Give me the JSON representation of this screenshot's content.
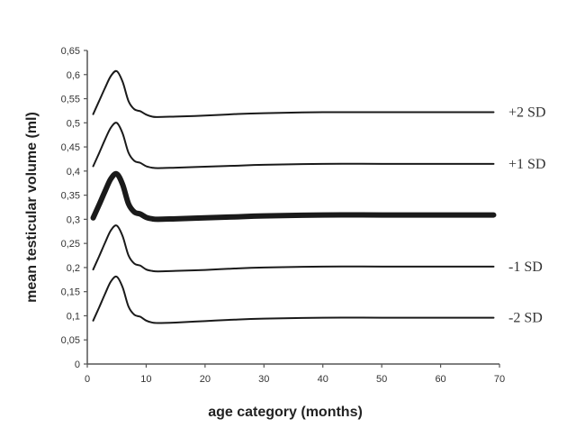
{
  "chart_data": {
    "type": "line",
    "title": "",
    "xlabel": "age category (months)",
    "ylabel": "mean testicular volume (ml)",
    "xlim": [
      0,
      70
    ],
    "ylim": [
      0,
      0.65
    ],
    "x_ticks": [
      0,
      10,
      20,
      30,
      40,
      50,
      60,
      70
    ],
    "x_tick_labels": [
      "0",
      "10",
      "20",
      "30",
      "40",
      "50",
      "60",
      "70"
    ],
    "y_ticks": [
      0,
      0.05,
      0.1,
      0.15,
      0.2,
      0.25,
      0.3,
      0.35,
      0.4,
      0.45,
      0.5,
      0.55,
      0.6,
      0.65
    ],
    "y_tick_labels": [
      "0",
      "0,05",
      "0,1",
      "0,15",
      "0,2",
      "0,25",
      "0,3",
      "0,35",
      "0,4",
      "0,45",
      "0,5",
      "0,55",
      "0,6",
      "0,65"
    ],
    "grid": false,
    "legend": "inline labels at right end of lines",
    "x": [
      1,
      2,
      3,
      4,
      5,
      6,
      7,
      8,
      9,
      10,
      11,
      12,
      15,
      20,
      25,
      30,
      40,
      50,
      60,
      69
    ],
    "series": [
      {
        "name": "+2 SD",
        "label": "+2 SD",
        "line_width": 2,
        "values": [
          0.518,
          0.545,
          0.572,
          0.597,
          0.607,
          0.585,
          0.545,
          0.528,
          0.524,
          0.517,
          0.513,
          0.512,
          0.513,
          0.515,
          0.518,
          0.52,
          0.522,
          0.522,
          0.522,
          0.522
        ]
      },
      {
        "name": "+1 SD",
        "label": "+1 SD",
        "line_width": 2,
        "values": [
          0.41,
          0.437,
          0.465,
          0.49,
          0.5,
          0.478,
          0.438,
          0.421,
          0.417,
          0.41,
          0.407,
          0.406,
          0.407,
          0.409,
          0.411,
          0.413,
          0.415,
          0.415,
          0.415,
          0.415
        ]
      },
      {
        "name": "Mean",
        "label": "",
        "line_width": 6,
        "values": [
          0.303,
          0.33,
          0.358,
          0.384,
          0.394,
          0.372,
          0.332,
          0.315,
          0.311,
          0.304,
          0.301,
          0.3,
          0.301,
          0.303,
          0.305,
          0.307,
          0.309,
          0.309,
          0.309,
          0.309
        ]
      },
      {
        "name": "-1 SD",
        "label": "-1 SD",
        "line_width": 2,
        "values": [
          0.196,
          0.223,
          0.251,
          0.277,
          0.287,
          0.265,
          0.225,
          0.208,
          0.204,
          0.196,
          0.193,
          0.192,
          0.193,
          0.195,
          0.198,
          0.2,
          0.202,
          0.202,
          0.202,
          0.202
        ]
      },
      {
        "name": "-2 SD",
        "label": "-2 SD",
        "line_width": 2,
        "values": [
          0.09,
          0.117,
          0.145,
          0.171,
          0.181,
          0.159,
          0.119,
          0.102,
          0.098,
          0.09,
          0.086,
          0.085,
          0.086,
          0.089,
          0.092,
          0.094,
          0.096,
          0.096,
          0.096,
          0.096
        ]
      }
    ]
  },
  "colors": {
    "axis": "#555555",
    "line": "#1a1a1a",
    "text": "#333333",
    "background": "#ffffff"
  }
}
